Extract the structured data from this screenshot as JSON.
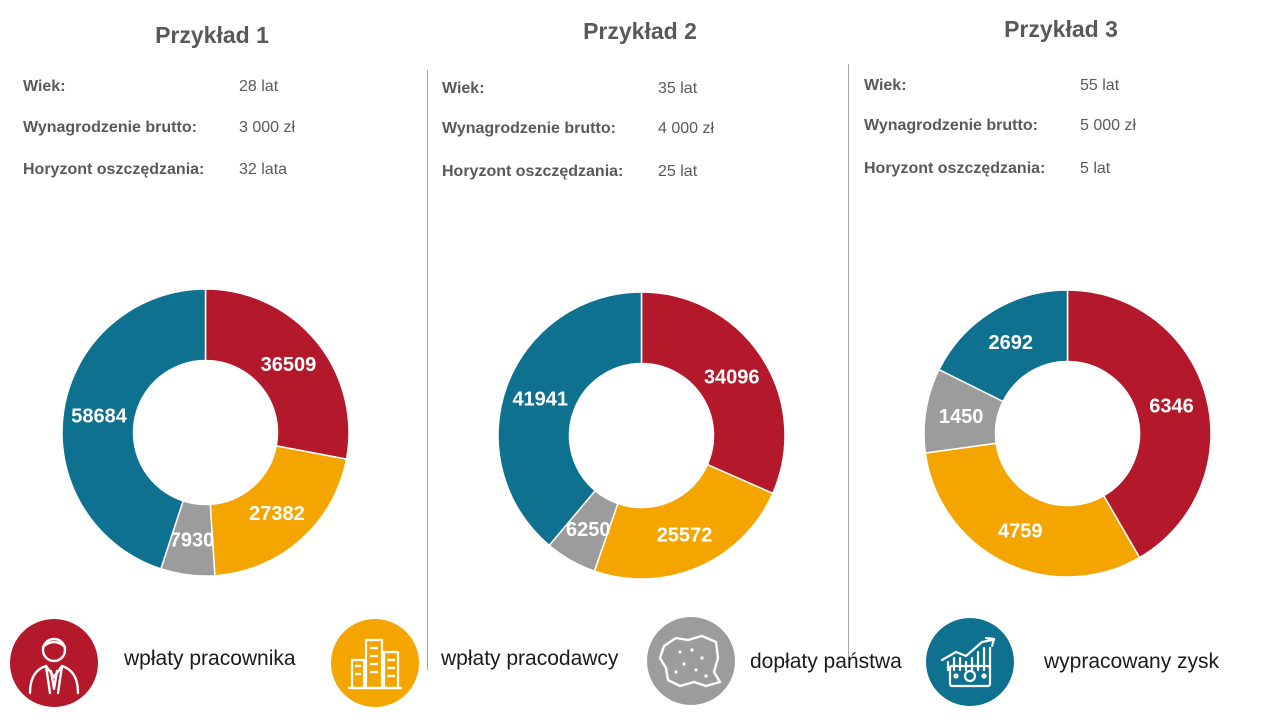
{
  "colors": {
    "employee": "#B3192B",
    "employer": "#F4A500",
    "state": "#9C9C9C",
    "profit": "#0E7190"
  },
  "examples": [
    {
      "title": "Przykład 1",
      "rows": [
        {
          "label": "Wiek:",
          "value": "28 lat"
        },
        {
          "label": "Wynagrodzenie brutto:",
          "value": "3 000 zł"
        },
        {
          "label": "Horyzont oszczędzania:",
          "value": "32 lata"
        }
      ]
    },
    {
      "title": "Przykład 2",
      "rows": [
        {
          "label": "Wiek:",
          "value": "35 lat"
        },
        {
          "label": "Wynagrodzenie brutto:",
          "value": "4 000 zł"
        },
        {
          "label": "Horyzont oszczędzania:",
          "value": "25 lat"
        }
      ]
    },
    {
      "title": "Przykład 3",
      "rows": [
        {
          "label": "Wiek:",
          "value": "55 lat"
        },
        {
          "label": "Wynagrodzenie brutto:",
          "value": "5 000 zł"
        },
        {
          "label": "Horyzont oszczędzania:",
          "value": "5 lat"
        }
      ]
    }
  ],
  "chart_data": [
    {
      "type": "pie",
      "categories": [
        "wpłaty pracownika",
        "wpłaty pracodawcy",
        "dopłaty państwa",
        "wypracowany zysk"
      ],
      "values": [
        36509,
        27382,
        7930,
        58684
      ]
    },
    {
      "type": "pie",
      "categories": [
        "wpłaty pracownika",
        "wpłaty pracodawcy",
        "dopłaty państwa",
        "wypracowany zysk"
      ],
      "values": [
        34096,
        25572,
        6250,
        41941
      ]
    },
    {
      "type": "pie",
      "categories": [
        "wpłaty pracownika",
        "wpłaty pracodawcy",
        "dopłaty państwa",
        "wypracowany zysk"
      ],
      "values": [
        6346,
        4759,
        1450,
        2692
      ]
    }
  ],
  "legend": [
    {
      "label": "wpłaty pracownika",
      "icon": "employee-person-icon",
      "color_key": "employee"
    },
    {
      "label": "wpłaty pracodawcy",
      "icon": "office-buildings-icon",
      "color_key": "employer"
    },
    {
      "label": "dopłaty państwa",
      "icon": "poland-map-icon",
      "color_key": "state"
    },
    {
      "label": "wypracowany zysk",
      "icon": "money-growth-chart-icon",
      "color_key": "profit"
    }
  ]
}
